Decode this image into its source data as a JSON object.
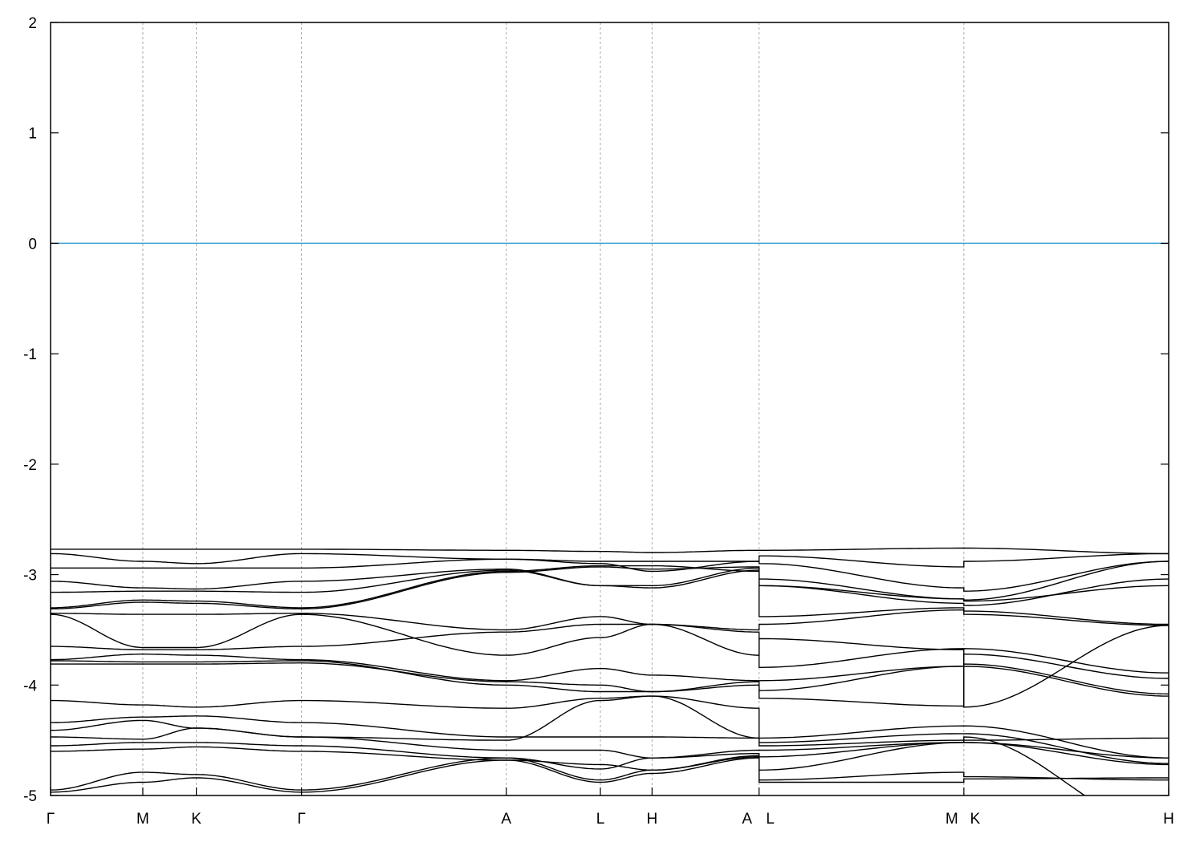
{
  "chart_data": {
    "type": "line",
    "title": "",
    "xlabel": "",
    "ylabel": "",
    "ylim": [
      -5,
      2
    ],
    "yticks": [
      "-5",
      "-4",
      "-3",
      "-2",
      "-1",
      "0",
      "1",
      "2"
    ],
    "grid": "vertical dashed lines at high-symmetry points",
    "legend": "none",
    "reference_line": {
      "y": 0,
      "color": "#3a9fd6"
    },
    "band_color": "#000000",
    "k_path": {
      "labels": [
        "Γ",
        "M",
        "K",
        "Γ",
        "A",
        "L",
        "H",
        "A",
        "L",
        "M",
        "K",
        "H"
      ],
      "k": [
        0,
        0.5,
        0.79,
        1.36,
        2.47,
        2.98,
        3.26,
        3.84,
        3.84,
        4.95,
        4.95,
        6.06
      ]
    },
    "bands": [
      [
        -2.77,
        -2.77,
        -2.77,
        -2.77,
        -2.78,
        -2.79,
        -2.8,
        -2.78,
        -2.78,
        -2.76,
        -2.76,
        -2.81
      ],
      [
        -2.81,
        -2.88,
        -2.9,
        -2.81,
        -2.86,
        -2.88,
        -2.88,
        -2.88,
        -2.83,
        -2.93,
        -2.88,
        -2.81
      ],
      [
        -2.94,
        -2.94,
        -2.94,
        -2.94,
        -2.86,
        -2.9,
        -2.97,
        -2.88,
        -2.9,
        -3.12,
        -3.15,
        -2.88
      ],
      [
        -3.06,
        -3.12,
        -3.13,
        -3.06,
        -2.95,
        -3.1,
        -3.1,
        -2.94,
        -3.04,
        -3.22,
        -3.23,
        -2.88
      ],
      [
        -3.16,
        -3.15,
        -3.15,
        -3.16,
        -2.96,
        -3.1,
        -3.12,
        -2.96,
        -3.1,
        -3.26,
        -3.28,
        -3.04
      ],
      [
        -3.3,
        -3.23,
        -3.24,
        -3.3,
        -2.97,
        -2.92,
        -2.92,
        -2.97,
        -3.1,
        -3.22,
        -3.24,
        -3.1
      ],
      [
        -3.31,
        -3.25,
        -3.26,
        -3.31,
        -2.98,
        -2.93,
        -2.95,
        -2.93,
        -3.38,
        -3.3,
        -3.33,
        -3.45
      ],
      [
        -3.35,
        -3.36,
        -3.36,
        -3.35,
        -3.5,
        -3.38,
        -3.45,
        -3.5,
        -3.45,
        -3.32,
        -3.36,
        -3.46
      ],
      [
        -3.36,
        -3.66,
        -3.66,
        -3.36,
        -3.73,
        -3.57,
        -3.45,
        -3.73,
        -3.58,
        -3.68,
        -4.2,
        -3.46
      ],
      [
        -3.65,
        -3.68,
        -3.68,
        -3.65,
        -3.52,
        -3.45,
        -3.45,
        -3.52,
        -3.84,
        -3.67,
        -3.67,
        -3.89
      ],
      [
        -3.77,
        -3.72,
        -3.73,
        -3.77,
        -3.96,
        -3.85,
        -3.91,
        -3.96,
        -3.96,
        -3.83,
        -3.72,
        -3.94
      ],
      [
        -3.81,
        -3.81,
        -3.81,
        -3.8,
        -3.97,
        -4.0,
        -4.06,
        -3.97,
        -4.05,
        -3.83,
        -3.81,
        -4.08
      ],
      [
        -3.78,
        -3.79,
        -3.79,
        -3.78,
        -4.0,
        -4.06,
        -4.06,
        -4.0,
        -4.12,
        -4.19,
        -3.83,
        -4.1
      ],
      [
        -4.14,
        -4.18,
        -4.2,
        -4.14,
        -4.21,
        -4.12,
        -4.1,
        -4.21,
        -4.48,
        -4.37,
        -4.37,
        -4.66
      ],
      [
        -4.34,
        -4.29,
        -4.28,
        -4.34,
        -4.47,
        -4.47,
        -4.47,
        -4.48,
        -4.52,
        -4.44,
        -4.44,
        -4.71
      ],
      [
        -4.41,
        -4.32,
        -4.39,
        -4.47,
        -4.5,
        -4.14,
        -4.1,
        -4.48,
        -4.55,
        -4.5,
        -4.5,
        -4.48
      ],
      [
        -4.47,
        -4.49,
        -4.39,
        -4.47,
        -4.59,
        -4.59,
        -4.66,
        -4.59,
        -4.59,
        -4.52,
        -4.52,
        -4.66
      ],
      [
        -4.55,
        -4.52,
        -4.52,
        -4.55,
        -4.66,
        -4.76,
        -4.66,
        -4.62,
        -4.65,
        -4.52,
        -4.52,
        -4.72
      ],
      [
        -4.95,
        -4.79,
        -4.81,
        -4.95,
        -4.66,
        -4.86,
        -4.77,
        -4.65,
        -4.86,
        -4.79,
        -4.83,
        -4.86
      ],
      [
        -4.97,
        -4.88,
        -4.84,
        -4.97,
        -4.68,
        -4.88,
        -4.8,
        -4.66,
        -4.88,
        -4.88,
        -4.85,
        -4.84
      ],
      [
        -4.6,
        -4.58,
        -4.56,
        -4.6,
        -4.68,
        -4.72,
        -4.77,
        -4.64,
        -4.77,
        -4.52,
        -4.47,
        -5.3
      ]
    ]
  }
}
